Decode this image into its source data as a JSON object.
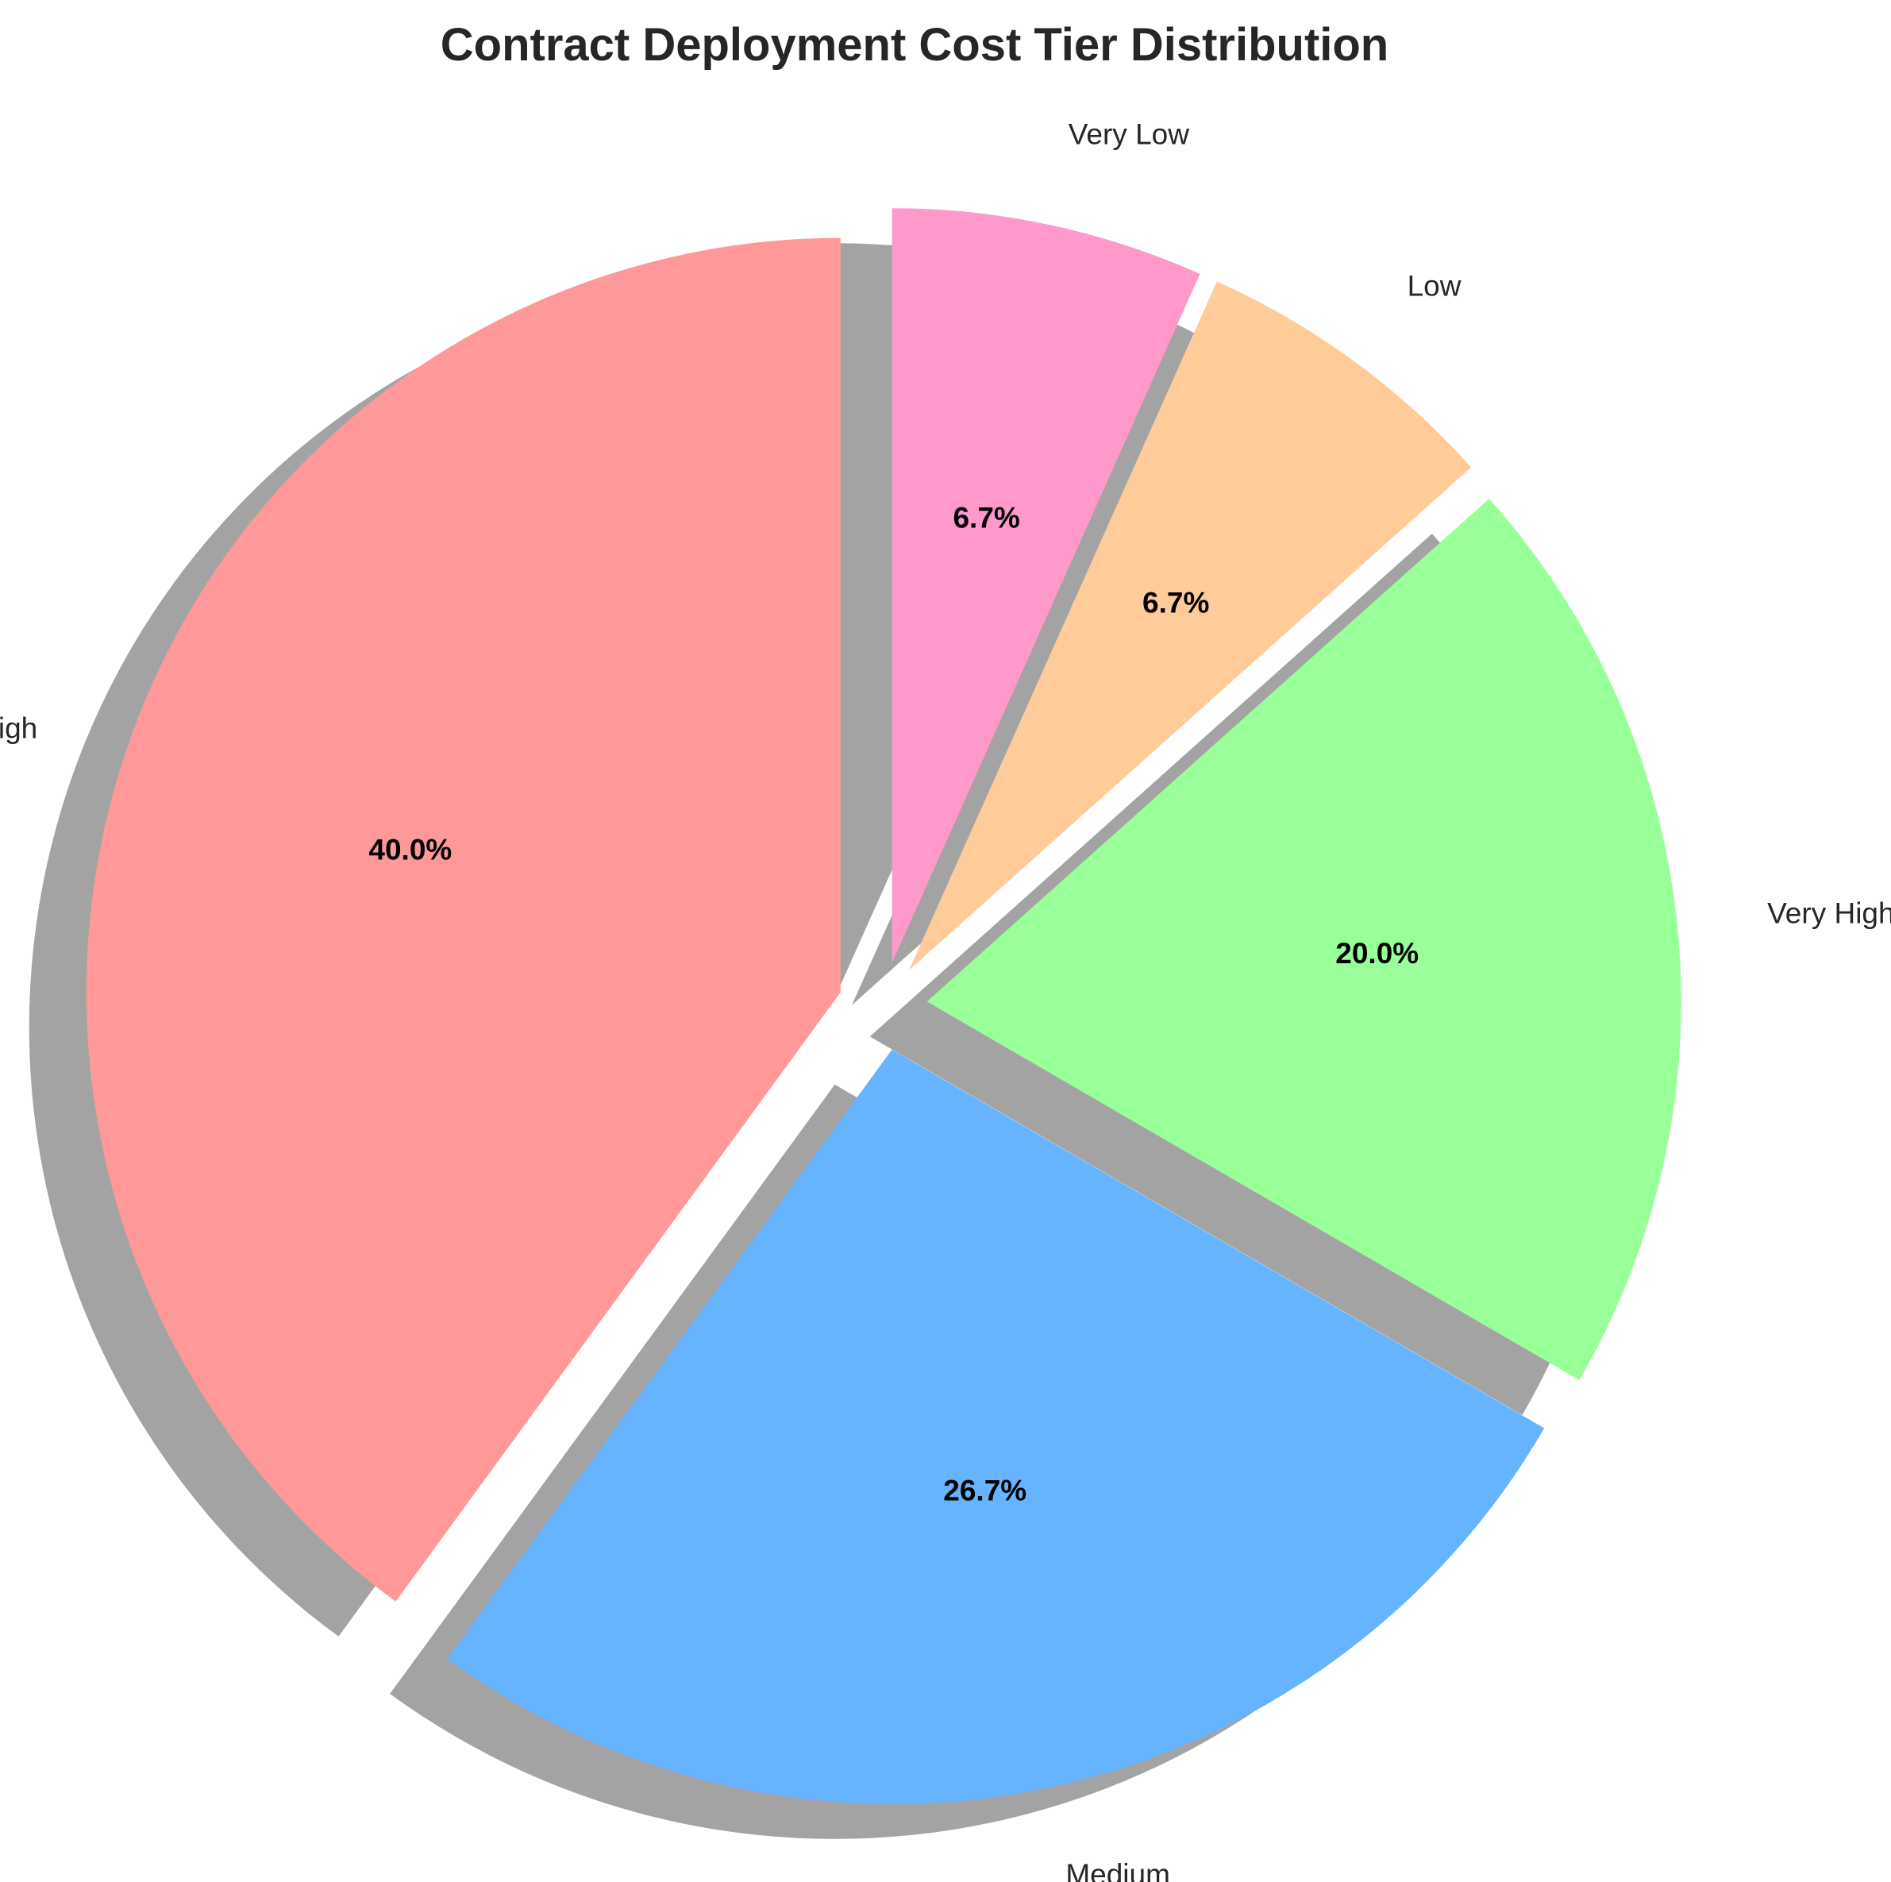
{
  "chart_data": {
    "type": "pie",
    "title": "Contract Deployment Cost Tier Distribution",
    "categories": [
      "High",
      "Medium",
      "Very High",
      "Low",
      "Very Low"
    ],
    "values": [
      40.0,
      26.7,
      20.0,
      6.7,
      6.7
    ],
    "value_labels": [
      "40.0%",
      "26.7%",
      "20.0%",
      "6.7%",
      "6.7%"
    ],
    "colors": [
      "#FF9999",
      "#66B3FF",
      "#99FF99",
      "#FFCC99",
      "#FF99CC"
    ],
    "start_angle_deg": 90,
    "direction": "counterclockwise",
    "exploded": true,
    "shadow": true
  }
}
